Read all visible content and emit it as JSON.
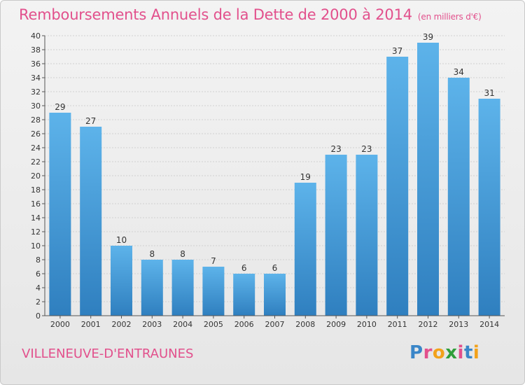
{
  "title": {
    "main": "Remboursements Annuels de la Dette de 2000 à 2014",
    "unit": "(en milliers d'€)"
  },
  "city": "VILLENEUVE-D'ENTRAUNES",
  "logo": {
    "letters": [
      "P",
      "r",
      "o",
      "x",
      "i",
      "t",
      "i"
    ],
    "colors": [
      "#3a86c8",
      "#e2508c",
      "#f2a21b",
      "#2f9e3a",
      "#e2508c",
      "#3a86c8",
      "#f2a21b"
    ]
  },
  "colors": {
    "title": "#e2508c",
    "bar_light": "#5db3ea",
    "bar_dark": "#2f7fbf",
    "grid": "#d0d0d0",
    "axis": "#555555"
  },
  "chart_data": {
    "type": "bar",
    "categories": [
      "2000",
      "2001",
      "2002",
      "2003",
      "2004",
      "2005",
      "2006",
      "2007",
      "2008",
      "2009",
      "2010",
      "2011",
      "2012",
      "2013",
      "2014"
    ],
    "values": [
      29,
      27,
      10,
      8,
      8,
      7,
      6,
      6,
      19,
      23,
      23,
      37,
      39,
      34,
      31
    ],
    "ylim": [
      0,
      40
    ],
    "yticks": [
      0,
      2,
      4,
      6,
      8,
      10,
      12,
      14,
      16,
      18,
      20,
      22,
      24,
      26,
      28,
      30,
      32,
      34,
      36,
      38,
      40
    ],
    "grid": true,
    "data_labels": true
  }
}
